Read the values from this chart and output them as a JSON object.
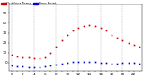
{
  "background_color": "#ffffff",
  "temp_color": "#cc0000",
  "dew_color": "#0000cc",
  "legend_temp_color": "#dd0000",
  "legend_dew_color": "#0000dd",
  "ylim": [
    -8,
    58
  ],
  "ytick_values": [
    0,
    10,
    20,
    30,
    40,
    50
  ],
  "ytick_labels": [
    "0",
    "10",
    "20",
    "30",
    "40",
    "50"
  ],
  "hours": [
    0,
    1,
    2,
    3,
    4,
    5,
    6,
    7,
    8,
    9,
    10,
    11,
    12,
    13,
    14,
    15,
    16,
    17,
    18,
    19,
    20,
    21,
    22,
    23
  ],
  "temp": [
    8,
    6,
    5,
    5,
    4,
    4,
    5,
    10,
    16,
    22,
    28,
    32,
    35,
    37,
    38,
    37,
    35,
    32,
    28,
    25,
    22,
    20,
    18,
    16
  ],
  "dew": [
    -3,
    -4,
    -4,
    -5,
    -5,
    -5,
    -4,
    -3,
    -2,
    -1,
    0,
    1,
    1,
    1,
    1,
    1,
    0,
    0,
    -1,
    -1,
    0,
    0,
    0,
    -1
  ],
  "grid_hours": [
    0,
    4,
    8,
    12,
    16,
    20
  ],
  "grid_color": "#aaaaaa",
  "tick_fontsize": 3.0,
  "legend_fontsize": 2.8,
  "dot_size_temp": 1.2,
  "dot_size_dew": 1.2
}
